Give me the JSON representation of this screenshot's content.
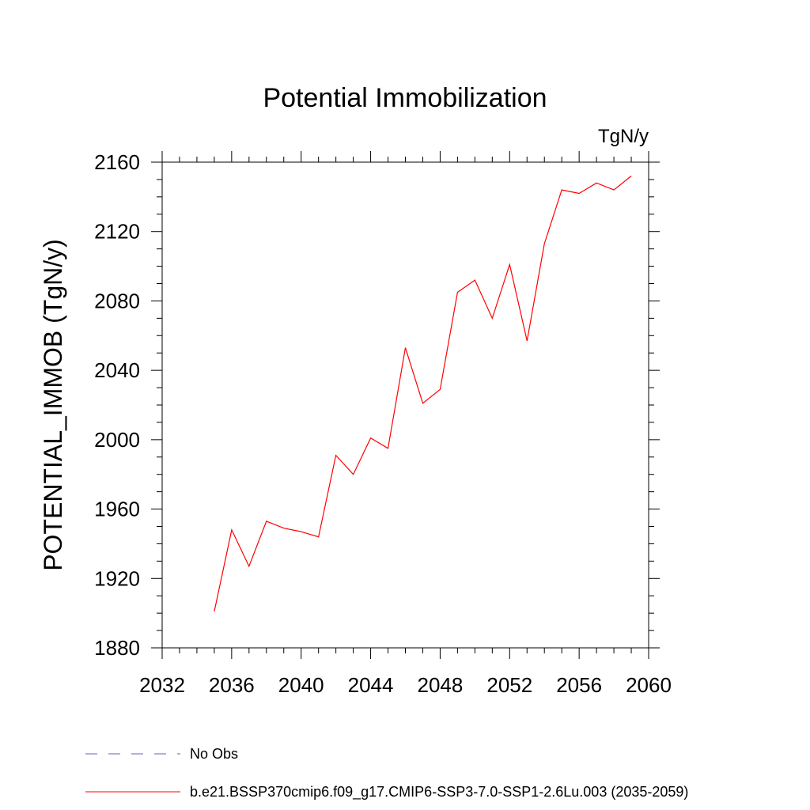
{
  "chart_data": {
    "type": "line",
    "title": "Potential Immobilization",
    "units": "TgN/y",
    "xlabel": "",
    "ylabel": "POTENTIAL_IMMOB  (TgN/y)",
    "xlim": [
      2032,
      2060
    ],
    "ylim": [
      1880,
      2160
    ],
    "x_ticks": [
      "2032",
      "2036",
      "2040",
      "2044",
      "2048",
      "2052",
      "2056",
      "2060"
    ],
    "y_ticks": [
      "1880",
      "1920",
      "1960",
      "2000",
      "2040",
      "2080",
      "2120",
      "2160"
    ],
    "grid": false,
    "legend_position": "bottom",
    "series": [
      {
        "name": "b.e21.BSSP370cmip6.f09_g17.CMIP6-SSP3-7.0-SSP1-2.6Lu.003 (2035-2059)",
        "color": "#ff0000",
        "style": "solid",
        "x": [
          2035,
          2036,
          2037,
          2038,
          2039,
          2040,
          2041,
          2042,
          2043,
          2044,
          2045,
          2046,
          2047,
          2048,
          2049,
          2050,
          2051,
          2052,
          2053,
          2054,
          2055,
          2056,
          2057,
          2058,
          2059
        ],
        "values": [
          1901,
          1948,
          1927,
          1953,
          1949,
          1947,
          1944,
          1991,
          1980,
          2001,
          1995,
          2053,
          2021,
          2029,
          2085,
          2092,
          2070,
          2101,
          2057,
          2113,
          2144,
          2142,
          2148,
          2144,
          2152
        ]
      }
    ],
    "legend": [
      {
        "label": "No Obs",
        "color": "#6a5acd",
        "style": "dashed"
      },
      {
        "label": "b.e21.BSSP370cmip6.f09_g17.CMIP6-SSP3-7.0-SSP1-2.6Lu.003 (2035-2059)",
        "color": "#ff0000",
        "style": "solid"
      }
    ]
  }
}
